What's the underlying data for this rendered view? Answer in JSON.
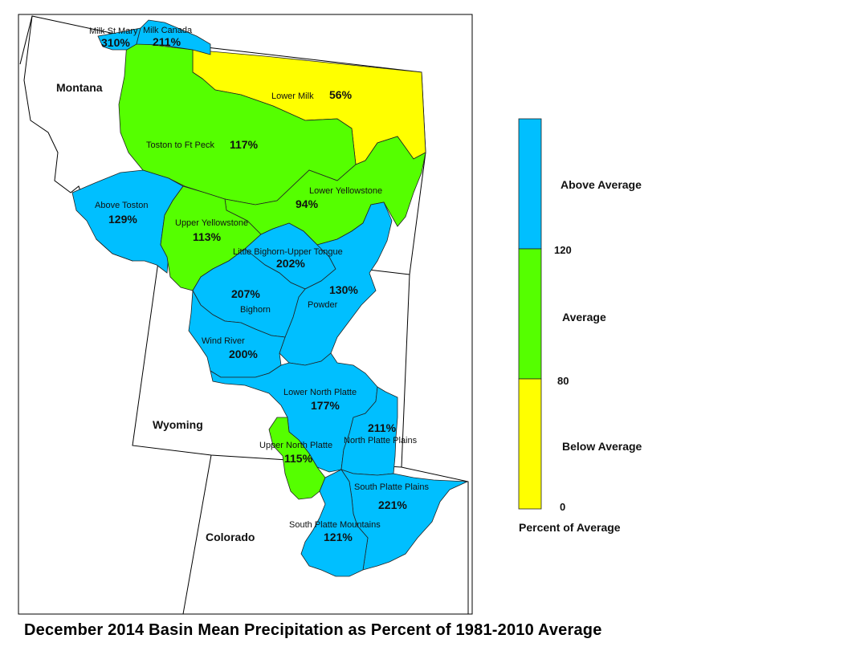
{
  "title": "December 2014 Basin Mean Precipitation as Percent of 1981-2010 Average",
  "colors": {
    "above": "#00bfff",
    "average": "#55ff00",
    "below": "#ffff00",
    "outline": "#222222",
    "state_line": "#000000"
  },
  "states": {
    "montana": "Montana",
    "wyoming": "Wyoming",
    "colorado": "Colorado"
  },
  "basins": {
    "milk_st_mary": {
      "name": "Milk St Mary",
      "value": "310%",
      "category": "above"
    },
    "milk_canada": {
      "name": "Milk Canada",
      "value": "211%",
      "category": "above"
    },
    "lower_milk": {
      "name": "Lower Milk",
      "value": "56%",
      "category": "below"
    },
    "toston_ft_peck": {
      "name": "Toston to Ft Peck",
      "value": "117%",
      "category": "average"
    },
    "above_toston": {
      "name": "Above Toston",
      "value": "129%",
      "category": "above"
    },
    "lower_yellowstone": {
      "name": "Lower Yellowstone",
      "value": "94%",
      "category": "average"
    },
    "upper_yellowstone": {
      "name": "Upper Yellowstone",
      "value": "113%",
      "category": "average"
    },
    "little_bighorn_upper_tongue": {
      "name": "Little Bighorn-Upper Tongue",
      "value": "202%",
      "category": "above"
    },
    "bighorn": {
      "name": "Bighorn",
      "value": "207%",
      "category": "above"
    },
    "powder": {
      "name": "Powder",
      "value": "130%",
      "category": "above"
    },
    "wind_river": {
      "name": "Wind River",
      "value": "200%",
      "category": "above"
    },
    "lower_north_platte": {
      "name": "Lower North Platte",
      "value": "177%",
      "category": "above"
    },
    "north_platte_plains": {
      "name": "North Platte Plains",
      "value": "211%",
      "category": "above"
    },
    "upper_north_platte": {
      "name": "Upper North Platte",
      "value": "115%",
      "category": "average"
    },
    "south_platte_plains": {
      "name": "South Platte Plains",
      "value": "221%",
      "category": "above"
    },
    "south_platte_mountains": {
      "name": "South Platte Mountains",
      "value": "121%",
      "category": "above"
    }
  },
  "legend": {
    "title": "Percent of Average",
    "classes": [
      {
        "label": "Above Average",
        "color": "#00bfff"
      },
      {
        "label": "Average",
        "color": "#55ff00"
      },
      {
        "label": "Below Average",
        "color": "#ffff00"
      }
    ],
    "ticks": [
      "120",
      "80",
      "0"
    ]
  }
}
